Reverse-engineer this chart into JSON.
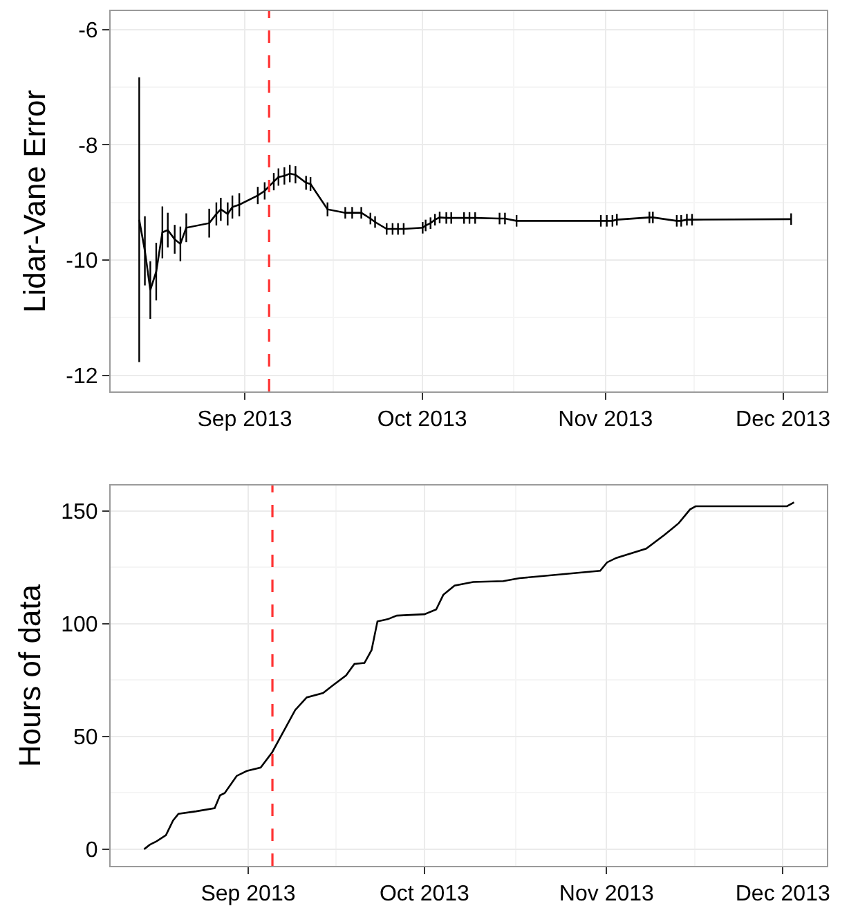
{
  "chart_data": [
    {
      "type": "line",
      "ylabel": "Lidar-Vane Error",
      "x": [
        "2013-08-14T04:00",
        "2013-08-15T03:00",
        "2013-08-16T01:00",
        "2013-08-17T01:00",
        "2013-08-18T02:00",
        "2013-08-19T00:00",
        "2013-08-20T04:00",
        "2013-08-21T03:00",
        "2013-08-22T03:00",
        "2013-08-26T00:00",
        "2013-08-27T05:00",
        "2013-08-27T23:00",
        "2013-08-29T03:00",
        "2013-08-29T22:00",
        "2013-08-31T02:00",
        "2013-09-03T05:00",
        "2013-09-04T09:00",
        "2013-09-05T22:00",
        "2013-09-06T17:00",
        "2013-09-07T17:00",
        "2013-09-08T15:00",
        "2013-09-09T14:00",
        "2013-09-11T09:00",
        "2013-09-12T03:00",
        "2013-09-15T00:00",
        "2013-09-18T00:00",
        "2013-09-19T04:00",
        "2013-09-20T17:00",
        "2013-09-22T06:00",
        "2013-09-23T01:00",
        "2013-09-25T00:00",
        "2013-09-26T00:00",
        "2013-09-26T22:00",
        "2013-09-27T21:00",
        "2013-10-01T02:00",
        "2013-10-01T14:00",
        "2013-10-02T10:00",
        "2013-10-03T04:00",
        "2013-10-03T23:00",
        "2013-10-05T02:00",
        "2013-10-05T22:00",
        "2013-10-08T02:00",
        "2013-10-09T00:00",
        "2013-10-09T23:00",
        "2013-10-14T02:00",
        "2013-10-15T00:00",
        "2013-10-16T23:00",
        "2013-10-31T05:00",
        "2013-11-01T05:00",
        "2013-11-02T04:00",
        "2013-11-02T22:00",
        "2013-11-08T10:00",
        "2013-11-09T00:00",
        "2013-11-13T01:00",
        "2013-11-13T19:00",
        "2013-11-14T18:00",
        "2013-11-15T15:00",
        "2013-12-02T09:00"
      ],
      "series": [
        {
          "color": "#000000",
          "values": [
            -9.3,
            -9.84,
            -10.52,
            -10.2,
            -9.52,
            -9.48,
            -9.64,
            -9.72,
            -9.44,
            -9.36,
            -9.2,
            -9.12,
            -9.2,
            -9.08,
            -9.04,
            -8.88,
            -8.8,
            -8.64,
            -8.56,
            -8.54,
            -8.5,
            -8.52,
            -8.66,
            -8.68,
            -9.12,
            -9.18,
            -9.18,
            -9.18,
            -9.28,
            -9.34,
            -9.46,
            -9.46,
            -9.46,
            -9.46,
            -9.44,
            -9.4,
            -9.36,
            -9.3,
            -9.26,
            -9.27,
            -9.27,
            -9.27,
            -9.27,
            -9.27,
            -9.28,
            -9.28,
            -9.32,
            -9.32,
            -9.32,
            -9.32,
            -9.3,
            -9.26,
            -9.26,
            -9.32,
            -9.32,
            -9.3,
            -9.3,
            -9.29
          ],
          "errors": [
            2.47,
            0.6,
            0.5,
            0.5,
            0.45,
            0.3,
            0.25,
            0.3,
            0.25,
            0.25,
            0.2,
            0.2,
            0.2,
            0.2,
            0.2,
            0.15,
            0.15,
            0.15,
            0.15,
            0.15,
            0.15,
            0.15,
            0.12,
            0.12,
            0.12,
            0.1,
            0.1,
            0.1,
            0.1,
            0.1,
            0.1,
            0.1,
            0.1,
            0.1,
            0.1,
            0.1,
            0.1,
            0.1,
            0.1,
            0.1,
            0.1,
            0.1,
            0.1,
            0.1,
            0.1,
            0.1,
            0.1,
            0.1,
            0.1,
            0.1,
            0.1,
            0.1,
            0.1,
            0.1,
            0.1,
            0.1,
            0.1,
            0.1
          ]
        }
      ],
      "xlim": [
        "2013-08-09T08:00",
        "2013-12-08T10:00"
      ],
      "xticks": [
        {
          "value": "2013-09-01",
          "label": "Sep 2013"
        },
        {
          "value": "2013-10-01",
          "label": "Oct 2013"
        },
        {
          "value": "2013-11-01",
          "label": "Nov 2013"
        },
        {
          "value": "2013-12-01",
          "label": "Dec 2013"
        }
      ],
      "ylim": [
        -12.28,
        -5.68
      ],
      "yticks": [
        -12,
        -10,
        -8,
        -6
      ],
      "grid": true,
      "ref_lines": [
        {
          "axis": "x",
          "value": "2013-09-05T03:00",
          "color": "#ff3333",
          "line_style": "dashed"
        }
      ]
    },
    {
      "type": "line",
      "ylabel": "Hours of data",
      "x": [
        "2013-08-14T07:00",
        "2013-08-15T06:00",
        "2013-08-16T10:00",
        "2013-08-18T00:00",
        "2013-08-19T05:00",
        "2013-08-20T03:00",
        "2013-08-23T03:00",
        "2013-08-26T07:00",
        "2013-08-27T05:00",
        "2013-08-28T00:00",
        "2013-08-30T01:00",
        "2013-08-31T18:00",
        "2013-09-03T03:00",
        "2013-09-05T02:00",
        "2013-09-09T00:00",
        "2013-09-10T23:00",
        "2013-09-13T18:00",
        "2013-09-15T07:00",
        "2013-09-17T16:00",
        "2013-09-19T02:00",
        "2013-09-20T19:00",
        "2013-09-22T00:00",
        "2013-09-23T00:00",
        "2013-09-24T18:00",
        "2013-09-26T07:00",
        "2013-10-01T00:00",
        "2013-10-03T00:00",
        "2013-10-04T05:00",
        "2013-10-06T03:00",
        "2013-10-09T07:00",
        "2013-10-14T10:00",
        "2013-10-17T04:00",
        "2013-10-30T22:00",
        "2013-11-01T02:00",
        "2013-11-02T16:00",
        "2013-11-07T18:00",
        "2013-11-10T22:00",
        "2013-11-13T07:00",
        "2013-11-15T05:00",
        "2013-11-16T04:00",
        "2013-12-01T17:00",
        "2013-12-02T22:00"
      ],
      "series": [
        {
          "color": "#000000",
          "values": [
            0,
            2,
            3.5,
            6.2,
            12.7,
            15.7,
            16.8,
            18.2,
            23.9,
            24.9,
            32.5,
            34.7,
            36.2,
            43,
            61.7,
            67.3,
            69.3,
            72.4,
            77.1,
            82.2,
            82.6,
            88.3,
            101,
            102,
            103.6,
            104.2,
            106.3,
            112.8,
            116.9,
            118.5,
            118.9,
            120.2,
            123.5,
            127.2,
            129.2,
            133.3,
            139.5,
            144.6,
            150.7,
            152.1,
            152.1,
            153.8
          ]
        }
      ],
      "xlim": [
        "2013-08-08T14:00",
        "2013-12-08T12:00"
      ],
      "xticks": [
        {
          "value": "2013-09-01",
          "label": "Sep 2013"
        },
        {
          "value": "2013-10-01",
          "label": "Oct 2013"
        },
        {
          "value": "2013-11-01",
          "label": "Nov 2013"
        },
        {
          "value": "2013-12-01",
          "label": "Dec 2013"
        }
      ],
      "ylim": [
        -7.4,
        161.3
      ],
      "yticks": [
        0,
        50,
        100,
        150
      ],
      "grid": true,
      "ref_lines": [
        {
          "axis": "x",
          "value": "2013-09-05T03:00",
          "color": "#ff3333",
          "line_style": "dashed"
        }
      ]
    }
  ]
}
